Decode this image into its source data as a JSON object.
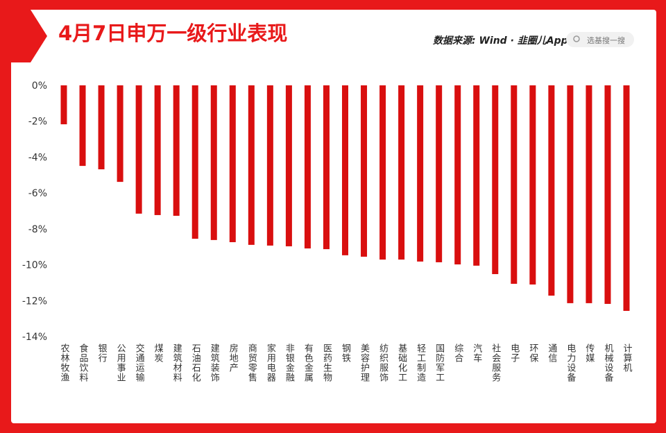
{
  "chart_data": {
    "type": "bar",
    "title": "4月7日申万一级行业表现",
    "categories": [
      "农林牧渔",
      "食品饮料",
      "银行",
      "公用事业",
      "交通运输",
      "煤炭",
      "建筑材料",
      "石油石化",
      "建筑装饰",
      "房地产",
      "商贸零售",
      "家用电器",
      "非银金融",
      "有色金属",
      "医药生物",
      "钢铁",
      "美容护理",
      "纺织服饰",
      "基础化工",
      "轻工制造",
      "国防军工",
      "综合",
      "汽车",
      "社会服务",
      "电子",
      "环保",
      "通信",
      "电力设备",
      "传媒",
      "机械设备",
      "计算机"
    ],
    "values": [
      -2.17,
      -4.49,
      -4.68,
      -5.38,
      -7.15,
      -7.23,
      -7.27,
      -8.55,
      -8.62,
      -8.74,
      -8.89,
      -8.93,
      -8.97,
      -9.09,
      -9.13,
      -9.47,
      -9.55,
      -9.71,
      -9.71,
      -9.82,
      -9.86,
      -9.98,
      -10.05,
      -10.52,
      -11.06,
      -11.1,
      -11.72,
      -12.14,
      -12.14,
      -12.18,
      -12.57
    ],
    "color": "#d90f0f",
    "ylim": [
      -14,
      0
    ],
    "yticks": [
      {
        "value": 0,
        "label": "0%"
      },
      {
        "value": -2,
        "label": "-2%"
      },
      {
        "value": -4,
        "label": "-4%"
      },
      {
        "value": -6,
        "label": "-6%"
      },
      {
        "value": -8,
        "label": "-8%"
      },
      {
        "value": -10,
        "label": "-10%"
      },
      {
        "value": -12,
        "label": "-12%"
      },
      {
        "value": -14,
        "label": "-14%"
      }
    ],
    "grid": false
  },
  "header": {
    "source": "数据来源: Wind · 韭圈儿App",
    "search": "选基搜一搜"
  }
}
